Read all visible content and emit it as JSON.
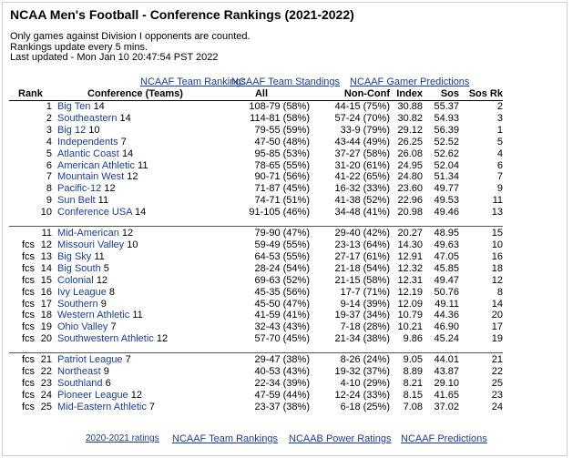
{
  "page_title": "NCAA Men's Football - Conference Rankings (2021-2022)",
  "info_lines": [
    "Only games against Division I opponents are counted.",
    "Rankings update every 5 mins.",
    "Last updated - Mon Jan 10 20:47:54 PST 2022"
  ],
  "top_links": [
    "NCAAF Team Rankings",
    "NCAAF Team Standings",
    "NCAAF Gamer Predictions"
  ],
  "columns": {
    "rank": "Rank",
    "conference": "Conference (Teams)",
    "all": "All",
    "nonconf": "Non-Conf",
    "index": "Index",
    "sos": "Sos",
    "sos_rk": "Sos Rk"
  },
  "groups": [
    [
      {
        "fcs": "",
        "rank": "1",
        "name": "Big Ten",
        "teams": "14",
        "all": "108-79 (58%)",
        "nonconf": "44-15 (75%)",
        "index": "30.88",
        "sos": "55.37",
        "sos_rk": "2"
      },
      {
        "fcs": "",
        "rank": "2",
        "name": "Southeastern",
        "teams": "14",
        "all": "114-81 (58%)",
        "nonconf": "57-24 (70%)",
        "index": "30.82",
        "sos": "54.93",
        "sos_rk": "3"
      },
      {
        "fcs": "",
        "rank": "3",
        "name": "Big 12",
        "teams": "10",
        "all": "79-55 (59%)",
        "nonconf": "33-9 (79%)",
        "index": "29.12",
        "sos": "56.39",
        "sos_rk": "1"
      },
      {
        "fcs": "",
        "rank": "4",
        "name": "Independents",
        "teams": "7",
        "all": "47-50 (48%)",
        "nonconf": "43-44 (49%)",
        "index": "26.25",
        "sos": "52.52",
        "sos_rk": "5"
      },
      {
        "fcs": "",
        "rank": "5",
        "name": "Atlantic Coast",
        "teams": "14",
        "all": "95-85 (53%)",
        "nonconf": "37-27 (58%)",
        "index": "26.08",
        "sos": "52.62",
        "sos_rk": "4"
      },
      {
        "fcs": "",
        "rank": "6",
        "name": "American Athletic",
        "teams": "11",
        "all": "78-65 (55%)",
        "nonconf": "31-20 (61%)",
        "index": "24.95",
        "sos": "52.04",
        "sos_rk": "6"
      },
      {
        "fcs": "",
        "rank": "7",
        "name": "Mountain West",
        "teams": "12",
        "all": "90-71 (56%)",
        "nonconf": "41-22 (65%)",
        "index": "24.80",
        "sos": "51.34",
        "sos_rk": "7"
      },
      {
        "fcs": "",
        "rank": "8",
        "name": "Pacific-12",
        "teams": "12",
        "all": "71-87 (45%)",
        "nonconf": "16-32 (33%)",
        "index": "23.60",
        "sos": "49.77",
        "sos_rk": "9"
      },
      {
        "fcs": "",
        "rank": "9",
        "name": "Sun Belt",
        "teams": "11",
        "all": "74-71 (51%)",
        "nonconf": "41-38 (52%)",
        "index": "22.96",
        "sos": "49.53",
        "sos_rk": "11"
      },
      {
        "fcs": "",
        "rank": "10",
        "name": "Conference USA",
        "teams": "14",
        "all": "91-105 (46%)",
        "nonconf": "34-48 (41%)",
        "index": "20.98",
        "sos": "49.46",
        "sos_rk": "13"
      }
    ],
    [
      {
        "fcs": "",
        "rank": "11",
        "name": "Mid-American",
        "teams": "12",
        "all": "79-90 (47%)",
        "nonconf": "29-40 (42%)",
        "index": "20.27",
        "sos": "48.95",
        "sos_rk": "15"
      },
      {
        "fcs": "fcs",
        "rank": "12",
        "name": "Missouri Valley",
        "teams": "10",
        "all": "59-49 (55%)",
        "nonconf": "23-13 (64%)",
        "index": "14.30",
        "sos": "49.63",
        "sos_rk": "10"
      },
      {
        "fcs": "fcs",
        "rank": "13",
        "name": "Big Sky",
        "teams": "11",
        "all": "64-53 (55%)",
        "nonconf": "27-17 (61%)",
        "index": "12.91",
        "sos": "47.05",
        "sos_rk": "16"
      },
      {
        "fcs": "fcs",
        "rank": "14",
        "name": "Big South",
        "teams": "5",
        "all": "28-24 (54%)",
        "nonconf": "21-18 (54%)",
        "index": "12.32",
        "sos": "45.85",
        "sos_rk": "18"
      },
      {
        "fcs": "fcs",
        "rank": "15",
        "name": "Colonial",
        "teams": "12",
        "all": "69-63 (52%)",
        "nonconf": "21-15 (58%)",
        "index": "12.31",
        "sos": "49.47",
        "sos_rk": "12"
      },
      {
        "fcs": "fcs",
        "rank": "16",
        "name": "Ivy League",
        "teams": "8",
        "all": "45-35 (56%)",
        "nonconf": "17-7 (71%)",
        "index": "12.19",
        "sos": "50.76",
        "sos_rk": "8"
      },
      {
        "fcs": "fcs",
        "rank": "17",
        "name": "Southern",
        "teams": "9",
        "all": "45-50 (47%)",
        "nonconf": "9-14 (39%)",
        "index": "12.09",
        "sos": "49.11",
        "sos_rk": "14"
      },
      {
        "fcs": "fcs",
        "rank": "18",
        "name": "Western Athletic",
        "teams": "11",
        "all": "41-59 (41%)",
        "nonconf": "19-37 (34%)",
        "index": "10.79",
        "sos": "44.36",
        "sos_rk": "20"
      },
      {
        "fcs": "fcs",
        "rank": "19",
        "name": "Ohio Valley",
        "teams": "7",
        "all": "32-43 (43%)",
        "nonconf": "7-18 (28%)",
        "index": "10.21",
        "sos": "46.90",
        "sos_rk": "17"
      },
      {
        "fcs": "fcs",
        "rank": "20",
        "name": "Southwestern Athletic",
        "teams": "12",
        "all": "57-70 (45%)",
        "nonconf": "21-34 (38%)",
        "index": "9.86",
        "sos": "45.24",
        "sos_rk": "19"
      }
    ],
    [
      {
        "fcs": "fcs",
        "rank": "21",
        "name": "Patriot League",
        "teams": "7",
        "all": "29-47 (38%)",
        "nonconf": "8-26 (24%)",
        "index": "9.05",
        "sos": "44.01",
        "sos_rk": "21"
      },
      {
        "fcs": "fcs",
        "rank": "22",
        "name": "Northeast",
        "teams": "9",
        "all": "40-53 (43%)",
        "nonconf": "19-32 (37%)",
        "index": "8.89",
        "sos": "43.87",
        "sos_rk": "22"
      },
      {
        "fcs": "fcs",
        "rank": "23",
        "name": "Southland",
        "teams": "6",
        "all": "22-34 (39%)",
        "nonconf": "4-10 (29%)",
        "index": "8.21",
        "sos": "29.10",
        "sos_rk": "25"
      },
      {
        "fcs": "fcs",
        "rank": "24",
        "name": "Pioneer League",
        "teams": "12",
        "all": "47-59 (44%)",
        "nonconf": "12-24 (33%)",
        "index": "8.15",
        "sos": "41.65",
        "sos_rk": "23"
      },
      {
        "fcs": "fcs",
        "rank": "25",
        "name": "Mid-Eastern Athletic",
        "teams": "7",
        "all": "23-37 (38%)",
        "nonconf": "6-18 (25%)",
        "index": "7.08",
        "sos": "37.02",
        "sos_rk": "24"
      }
    ]
  ],
  "bottom_links": [
    "2020-2021 ratings",
    "NCAAF Team Rankings",
    "NCAAB Power Ratings",
    "NCAAF Predictions"
  ]
}
